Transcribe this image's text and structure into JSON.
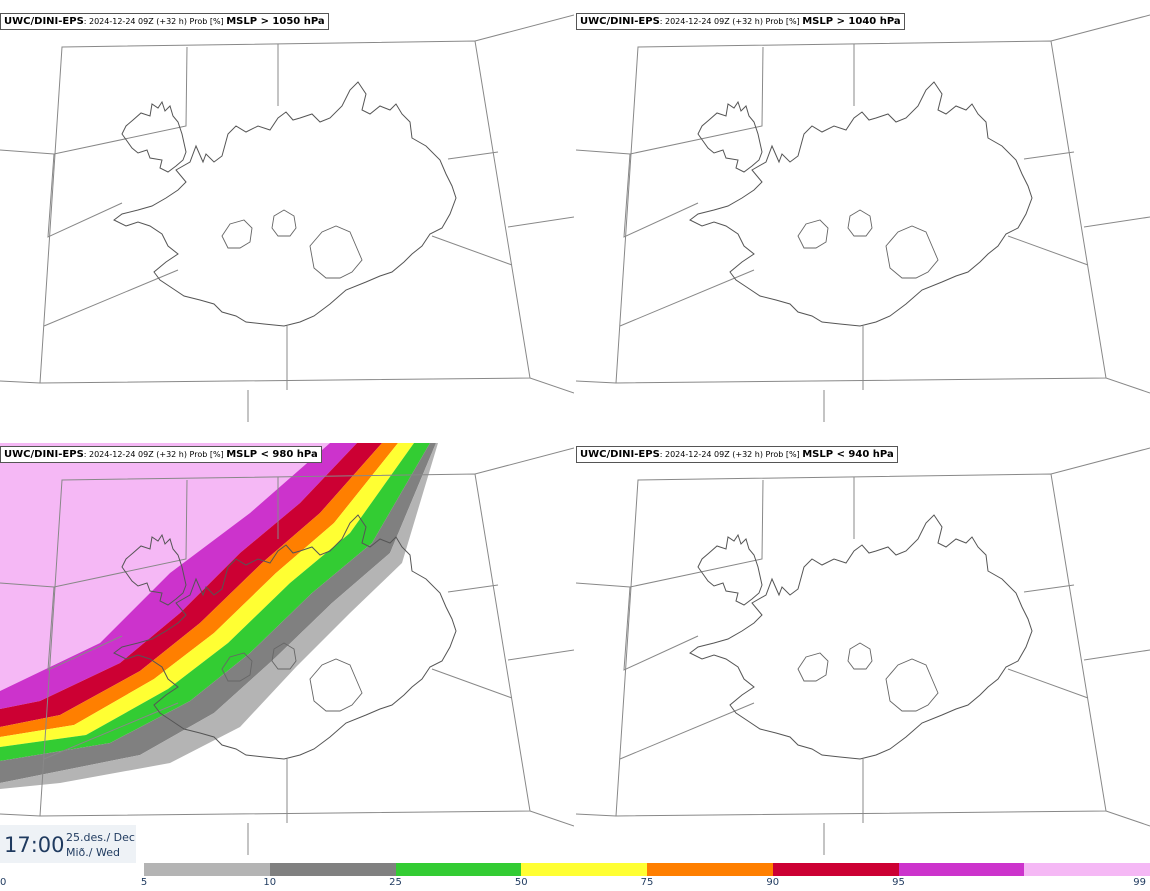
{
  "panels": [
    {
      "model": "UWC/DINI-EPS",
      "meta": ": 2024-12-24 09Z (+32 h) Prob [%] ",
      "threshold": "MSLP > 1050 hPa"
    },
    {
      "model": "UWC/DINI-EPS",
      "meta": ": 2024-12-24 09Z (+32 h) Prob [%] ",
      "threshold": "MSLP > 1040 hPa"
    },
    {
      "model": "UWC/DINI-EPS",
      "meta": ": 2024-12-24 09Z (+32 h) Prob [%] ",
      "threshold": "MSLP < 980 hPa"
    },
    {
      "model": "UWC/DINI-EPS",
      "meta": ": 2024-12-24 09Z (+32 h) Prob [%] ",
      "threshold": "MSLP < 940 hPa"
    }
  ],
  "time": {
    "hour": "17:00",
    "date_line1": "25.des./ Dec",
    "date_line2": "Mið./ Wed"
  },
  "colorbar": {
    "labels": [
      "0",
      "5",
      "10",
      "25",
      "50",
      "75",
      "90",
      "95",
      "99"
    ],
    "colors": [
      "#ffffff",
      "#b4b4b4",
      "#808080",
      "#33cc33",
      "#ffff33",
      "#ff7f00",
      "#cc0033",
      "#cc33cc",
      "#f5b8f5"
    ]
  }
}
